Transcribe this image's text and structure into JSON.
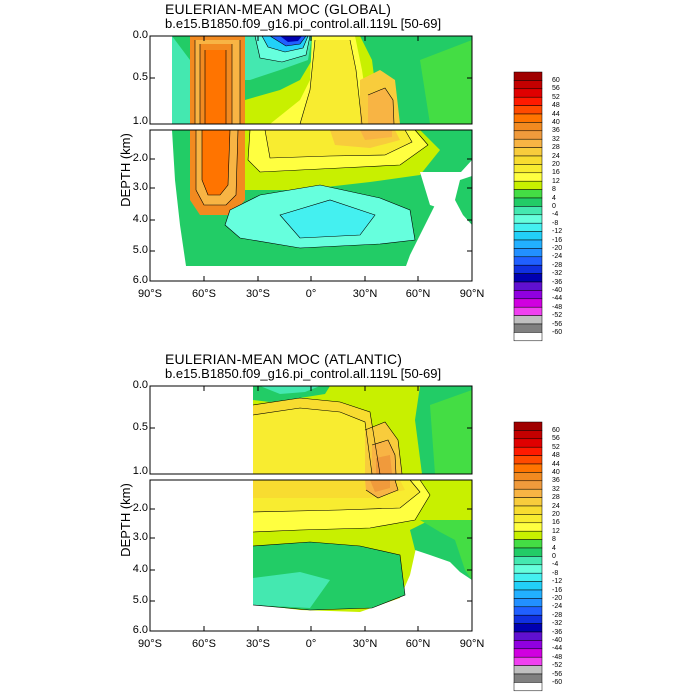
{
  "panels": [
    {
      "title": "EULERIAN-MEAN MOC (GLOBAL)",
      "subtitle": "b.e15.B1850.f09_g16.pi_control.all.119L [50-69]",
      "ylabel": "DEPTH (km)"
    },
    {
      "title": "EULERIAN-MEAN MOC (ATLANTIC)",
      "subtitle": "b.e15.B1850.f09_g16.pi_control.all.119L [50-69]",
      "ylabel": "DEPTH (km)"
    }
  ],
  "chart_data": [
    {
      "type": "heatmap",
      "title": "EULERIAN-MEAN MOC (GLOBAL)",
      "subtitle": "b.e15.B1850.f09_g16.pi_control.all.119L [50-69]",
      "xlabel": "",
      "ylabel": "DEPTH (km)",
      "xlim": [
        -90,
        90
      ],
      "ylim": [
        6.0,
        0.0
      ],
      "x_ticks": [
        "90°S",
        "60°S",
        "30°S",
        "0°",
        "30°N",
        "60°N",
        "90°N"
      ],
      "y_ticks_upper": [
        "0.0",
        "0.5",
        "1.0"
      ],
      "y_ticks_lower": [
        "2.0",
        "3.0",
        "4.0",
        "5.0",
        "6.0"
      ],
      "features": [
        {
          "name": "southern deep cell",
          "lat_range": [
            -65,
            -35
          ],
          "value_max": 36
        },
        {
          "name": "surface negative cell",
          "lat_range": [
            -30,
            0
          ],
          "value_min": -36
        },
        {
          "name": "northern overturning cell",
          "lat_range": [
            25,
            60
          ],
          "value_max": 24
        },
        {
          "name": "abyssal negative cell",
          "lat_range": [
            -35,
            45
          ],
          "value_min": -8
        }
      ]
    },
    {
      "type": "heatmap",
      "title": "EULERIAN-MEAN MOC (ATLANTIC)",
      "subtitle": "b.e15.B1850.f09_g16.pi_control.all.119L [50-69]",
      "xlabel": "",
      "ylabel": "DEPTH (km)",
      "xlim": [
        -90,
        90
      ],
      "ylim": [
        6.0,
        0.0
      ],
      "x_ticks": [
        "90°S",
        "60°S",
        "30°S",
        "0°",
        "30°N",
        "60°N",
        "90°N"
      ],
      "y_ticks_upper": [
        "0.0",
        "0.5",
        "1.0"
      ],
      "y_ticks_lower": [
        "2.0",
        "3.0",
        "4.0",
        "5.0",
        "6.0"
      ],
      "features": [
        {
          "name": "AMOC upper cell",
          "lat_range": [
            -33,
            60
          ],
          "value_max": 24
        },
        {
          "name": "AMOC core",
          "lat_range": [
            30,
            45
          ],
          "value_max": 32
        },
        {
          "name": "bottom cell",
          "lat_range": [
            -33,
            50
          ],
          "value_min": -4
        }
      ]
    }
  ],
  "colorbar": {
    "levels": [
      "60",
      "56",
      "52",
      "48",
      "44",
      "40",
      "36",
      "32",
      "28",
      "24",
      "20",
      "16",
      "12",
      "8",
      "4",
      "0",
      "-4",
      "-8",
      "-12",
      "-16",
      "-20",
      "-24",
      "-28",
      "-32",
      "-36",
      "-40",
      "-44",
      "-48",
      "-52",
      "-56",
      "-60"
    ],
    "colors": [
      "#a00000",
      "#c40000",
      "#e00000",
      "#ff1a00",
      "#ff4a00",
      "#ff7400",
      "#f28a20",
      "#f09a3c",
      "#f8b444",
      "#f8cc3c",
      "#f8dc30",
      "#f8ec30",
      "#ffff40",
      "#c8f000",
      "#44dd44",
      "#22cc66",
      "#44e8b0",
      "#66ffdd",
      "#44f0f0",
      "#22d0f8",
      "#22b0ff",
      "#2290ff",
      "#2060ff",
      "#1030e0",
      "#0000b0",
      "#6010d0",
      "#9000e0",
      "#d000e0",
      "#f040f0",
      "#c0c0c0",
      "#808080",
      "#ffffff"
    ]
  }
}
